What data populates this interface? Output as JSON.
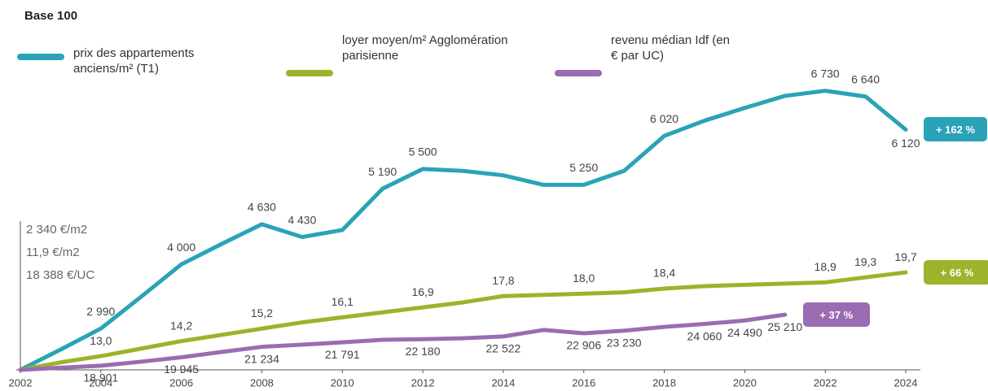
{
  "chart_data": {
    "type": "line",
    "title": "Base 100",
    "x": [
      2002,
      2003,
      2004,
      2005,
      2006,
      2007,
      2008,
      2009,
      2010,
      2011,
      2012,
      2013,
      2014,
      2015,
      2016,
      2017,
      2018,
      2019,
      2020,
      2021,
      2022,
      2023,
      2024
    ],
    "xlim": [
      2002,
      2024
    ],
    "xticks": [
      2002,
      2004,
      2006,
      2008,
      2010,
      2012,
      2014,
      2016,
      2018,
      2020,
      2022,
      2024
    ],
    "ylim": [
      100,
      300
    ],
    "series": [
      {
        "name": "prix des appartements anciens/m² (T1)",
        "color": "#2aa3b8",
        "base": {
          "value": 2340,
          "label": "2 340 €/m2"
        },
        "change_label": "+ 162 %",
        "values": [
          2340,
          2660,
          2990,
          3490,
          4000,
          4320,
          4630,
          4430,
          4540,
          5190,
          5500,
          5470,
          5400,
          5250,
          5250,
          5470,
          6020,
          6260,
          6460,
          6650,
          6730,
          6640,
          6120
        ],
        "value_labels": [
          null,
          null,
          "2 990",
          null,
          "4 000",
          null,
          "4 630",
          "4 430",
          null,
          "5 190",
          "5 500",
          null,
          null,
          null,
          "5 250",
          null,
          "6 020",
          null,
          null,
          null,
          "6 730",
          "6 640",
          "6 120"
        ]
      },
      {
        "name": "loyer moyen/m² Agglomération parisienne",
        "color": "#9cb32b",
        "base": {
          "value": 11.9,
          "label": "11,9 €/m2"
        },
        "change_label": "+ 66 %",
        "values": [
          11.9,
          12.5,
          13.0,
          13.6,
          14.2,
          14.7,
          15.2,
          15.7,
          16.1,
          16.5,
          16.9,
          17.3,
          17.8,
          17.9,
          18.0,
          18.1,
          18.4,
          18.6,
          18.7,
          18.8,
          18.9,
          19.3,
          19.7
        ],
        "value_labels": [
          null,
          null,
          "13,0",
          null,
          "14,2",
          null,
          "15,2",
          null,
          "16,1",
          null,
          "16,9",
          null,
          "17,8",
          null,
          "18,0",
          null,
          "18,4",
          null,
          null,
          null,
          "18,9",
          "19,3",
          "19,7"
        ]
      },
      {
        "name": "revenu médian Idf (en € par UC)",
        "color": "#9a6cb1",
        "base": {
          "value": 18388,
          "label": "18 388 €/UC"
        },
        "change_label": "+ 37 %",
        "values": [
          18388,
          18650,
          18901,
          19400,
          19945,
          20600,
          21234,
          21500,
          21791,
          22100,
          22180,
          22300,
          22522,
          23320,
          22906,
          23230,
          23700,
          24060,
          24490,
          25210,
          null,
          null,
          null
        ],
        "value_labels": [
          null,
          null,
          "18 901",
          null,
          "19 945",
          null,
          "21 234",
          null,
          "21 791",
          null,
          "22 180",
          null,
          "22 522",
          null,
          "22 906",
          "23 230",
          null,
          "24 060",
          "24 490",
          "25 210",
          null,
          null,
          null
        ]
      }
    ]
  }
}
